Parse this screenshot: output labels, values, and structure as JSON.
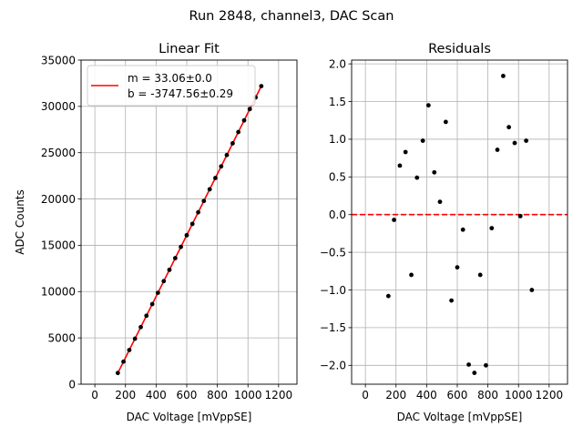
{
  "suptitle": "Run 2848, channel3, DAC Scan",
  "chart_data": [
    {
      "type": "scatter",
      "title": "Linear Fit",
      "xlabel": "DAC Voltage [mVppSE]",
      "ylabel": "ADC Counts",
      "xlim": [
        -90,
        1320
      ],
      "ylim": [
        0,
        35000
      ],
      "xticks": [
        0,
        200,
        400,
        600,
        800,
        1000,
        1200
      ],
      "xtick_labels": [
        "0",
        "200",
        "400",
        "600",
        "800",
        "1000",
        "1200"
      ],
      "yticks": [
        0,
        5000,
        10000,
        15000,
        20000,
        25000,
        30000,
        35000
      ],
      "ytick_labels": [
        "0",
        "5000",
        "10000",
        "15000",
        "20000",
        "25000",
        "30000",
        "35000"
      ],
      "grid": true,
      "legend_position": "upper-left",
      "legend_lines": [
        "m = 33.06±0.0",
        "b = -3747.56±0.29"
      ],
      "fit_color": "#ff0000",
      "point_color": "#000000",
      "fit": {
        "m": 33.06,
        "b": -3747.56,
        "x_range": [
          150,
          1090
        ]
      },
      "x": [
        150,
        187,
        225,
        262,
        300,
        337,
        375,
        412,
        450,
        487,
        525,
        562,
        600,
        637,
        675,
        712,
        750,
        787,
        825,
        862,
        900,
        937,
        975,
        1012,
        1050,
        1087
      ],
      "y": [
        1211,
        2435,
        3690,
        4914,
        6168,
        7391,
        8650,
        9872,
        11129,
        12351,
        13608,
        14829,
        16087,
        17309,
        18564,
        19787,
        21045,
        22266,
        23522,
        24748,
        26008,
        27229,
        28486,
        29709,
        30966,
        32186
      ]
    },
    {
      "type": "scatter",
      "title": "Residuals",
      "xlabel": "DAC Voltage [mVppSE]",
      "ylabel": "",
      "xlim": [
        -90,
        1320
      ],
      "ylim": [
        -2.25,
        2.05
      ],
      "xticks": [
        0,
        200,
        400,
        600,
        800,
        1000,
        1200
      ],
      "xtick_labels": [
        "0",
        "200",
        "400",
        "600",
        "800",
        "1000",
        "1200"
      ],
      "yticks": [
        -2.0,
        -1.5,
        -1.0,
        -0.5,
        0.0,
        0.5,
        1.0,
        1.5,
        2.0
      ],
      "ytick_labels": [
        "−2.0",
        "−1.5",
        "−1.0",
        "−0.5",
        "0.0",
        "0.5",
        "1.0",
        "1.5",
        "2.0"
      ],
      "grid": true,
      "reference_line": {
        "y": 0,
        "color": "#ff0000",
        "style": "dashed"
      },
      "point_color": "#000000",
      "x": [
        150,
        187,
        225,
        262,
        300,
        337,
        375,
        412,
        450,
        487,
        525,
        562,
        600,
        637,
        675,
        712,
        750,
        787,
        825,
        862,
        900,
        937,
        975,
        1012,
        1050,
        1087
      ],
      "y": [
        -1.08,
        -0.07,
        0.65,
        0.83,
        -0.8,
        0.49,
        0.98,
        1.45,
        0.56,
        0.17,
        1.23,
        -1.14,
        -0.7,
        -0.2,
        -1.99,
        -2.1,
        -0.8,
        -2.0,
        -0.18,
        0.86,
        1.84,
        1.16,
        0.95,
        -0.02,
        0.98,
        -1.0
      ]
    }
  ]
}
